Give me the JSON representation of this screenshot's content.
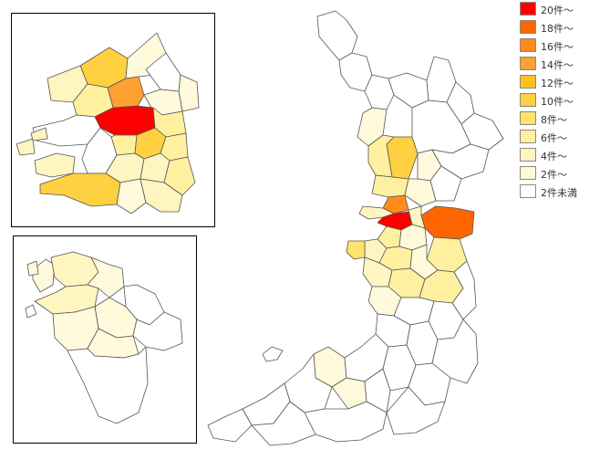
{
  "legend": {
    "items": [
      {
        "label": "20件～",
        "color": "#ff0000"
      },
      {
        "label": "18件～",
        "color": "#ff6600"
      },
      {
        "label": "16件～",
        "color": "#ff8c1a"
      },
      {
        "label": "14件～",
        "color": "#ffa033"
      },
      {
        "label": "12件～",
        "color": "#ffc021"
      },
      {
        "label": "10件～",
        "color": "#ffd040"
      },
      {
        "label": "8件～",
        "color": "#ffe36b"
      },
      {
        "label": "6件～",
        "color": "#fff0a0"
      },
      {
        "label": "4件～",
        "color": "#fff5c0"
      },
      {
        "label": "2件～",
        "color": "#fffadc"
      },
      {
        "label": "2件未満",
        "color": "#ffffff"
      }
    ]
  },
  "map": {
    "region_type": "choropleth municipalities",
    "insets": [
      "city-center enlargement",
      "coastal ward enlargement"
    ]
  }
}
